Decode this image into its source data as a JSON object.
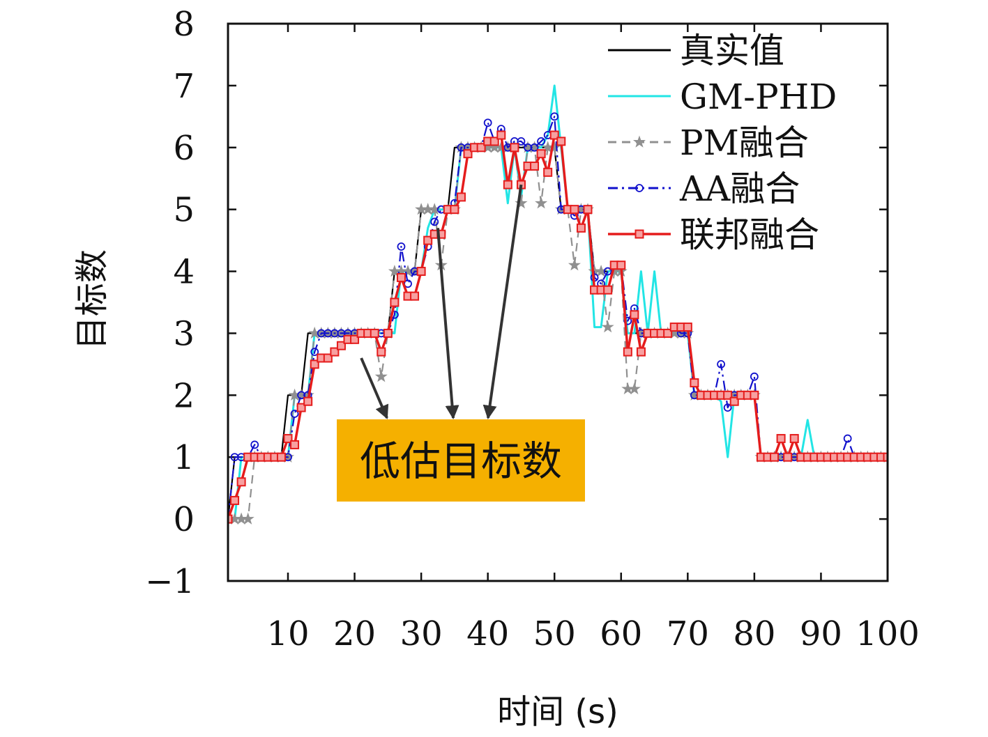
{
  "chart_data": {
    "type": "line",
    "title": "",
    "xlabel": "时间 (s)",
    "ylabel": "目标数",
    "xlim": [
      1,
      100
    ],
    "ylim": [
      -1,
      8
    ],
    "xticks": [
      10,
      20,
      30,
      40,
      50,
      60,
      70,
      80,
      90,
      100
    ],
    "yticks": [
      -1,
      0,
      1,
      2,
      3,
      4,
      5,
      6,
      7,
      8
    ],
    "ytick_labels": [
      "−1",
      "0",
      "1",
      "2",
      "3",
      "4",
      "5",
      "6",
      "7",
      "8"
    ],
    "legend_position": "top-right",
    "annotation": {
      "text": "低估目标数",
      "background": "#f5b000",
      "arrow_targets": [
        [
          21,
          2.6
        ],
        [
          32.5,
          4.7
        ],
        [
          45,
          5.4
        ]
      ]
    },
    "x": [
      1,
      2,
      3,
      4,
      5,
      6,
      7,
      8,
      9,
      10,
      11,
      12,
      13,
      14,
      15,
      16,
      17,
      18,
      19,
      20,
      21,
      22,
      23,
      24,
      25,
      26,
      27,
      28,
      29,
      30,
      31,
      32,
      33,
      34,
      35,
      36,
      37,
      38,
      39,
      40,
      41,
      42,
      43,
      44,
      45,
      46,
      47,
      48,
      49,
      50,
      51,
      52,
      53,
      54,
      55,
      56,
      57,
      58,
      59,
      60,
      61,
      62,
      63,
      64,
      65,
      66,
      67,
      68,
      69,
      70,
      71,
      72,
      73,
      74,
      75,
      76,
      77,
      78,
      79,
      80,
      81,
      82,
      83,
      84,
      85,
      86,
      87,
      88,
      89,
      90,
      91,
      92,
      93,
      94,
      95,
      96,
      97,
      98,
      99,
      100
    ],
    "series": [
      {
        "name": "真实值",
        "color": "#000000",
        "style": "solid",
        "marker": "none",
        "values": [
          0,
          1,
          1,
          1,
          1,
          1,
          1,
          1,
          1,
          2,
          2,
          2,
          3,
          3,
          3,
          3,
          3,
          3,
          3,
          3,
          3,
          3,
          3,
          3,
          3,
          4,
          4,
          4,
          4,
          5,
          5,
          5,
          5,
          5,
          6,
          6,
          6,
          6,
          6,
          6,
          6,
          6,
          6,
          6,
          6,
          6,
          6,
          6,
          6,
          6,
          5,
          5,
          5,
          5,
          5,
          4,
          4,
          4,
          4,
          4,
          3,
          3,
          3,
          3,
          3,
          3,
          3,
          3,
          3,
          3,
          2,
          2,
          2,
          2,
          2,
          2,
          2,
          2,
          2,
          2,
          1,
          1,
          1,
          1,
          1,
          1,
          1,
          1,
          1,
          1,
          1,
          1,
          1,
          1,
          1,
          1,
          1,
          1,
          1,
          1
        ]
      },
      {
        "name": "GM-PHD",
        "color": "#22e5e5",
        "style": "solid",
        "marker": "none",
        "values": [
          0,
          0,
          1,
          1,
          1,
          1,
          1,
          1,
          1,
          1,
          2,
          2,
          2,
          3,
          3,
          3,
          3,
          3,
          3,
          3,
          3,
          3,
          3,
          3,
          3,
          3,
          4,
          4,
          4,
          4,
          4.7,
          5,
          5,
          5,
          5,
          6,
          6,
          6,
          6,
          6,
          6,
          6,
          5.1,
          6,
          5.2,
          6,
          6,
          6,
          6.2,
          7,
          6,
          5,
          5,
          5,
          5,
          3.1,
          3.1,
          4,
          4,
          4,
          3,
          3,
          4,
          3,
          4,
          3,
          3,
          3,
          3,
          3,
          2,
          2,
          2,
          2,
          1.9,
          1,
          2,
          2,
          2,
          2,
          1,
          1,
          1,
          1,
          1,
          1,
          1,
          1.6,
          1,
          1,
          1,
          1,
          1,
          1,
          1,
          1,
          1,
          1,
          1,
          1
        ]
      },
      {
        "name": "PM融合",
        "color": "#909090",
        "style": "dashed",
        "marker": "star",
        "values": [
          0,
          0,
          0,
          0,
          1,
          1,
          1,
          1,
          1,
          1,
          2,
          2,
          2,
          3,
          3,
          3,
          3,
          3,
          3,
          3,
          3,
          3,
          3,
          2.3,
          3,
          4,
          4,
          4,
          4,
          5,
          5,
          5,
          4.1,
          5,
          5,
          6,
          6,
          6,
          6,
          6,
          6,
          6,
          6,
          6,
          5.1,
          6,
          6,
          5.1,
          6,
          6,
          5,
          5,
          4.1,
          5,
          5,
          4,
          4,
          3.1,
          4,
          4,
          2.1,
          2.1,
          3,
          3,
          3,
          3,
          3,
          3,
          3,
          3,
          2,
          2,
          2,
          2,
          2,
          2,
          2,
          2,
          2,
          2,
          1,
          1,
          1,
          1,
          1,
          1,
          1,
          1,
          1,
          1,
          1,
          1,
          1,
          1,
          1,
          1,
          1,
          1,
          1,
          1
        ]
      },
      {
        "name": "AA融合",
        "color": "#1010cc",
        "style": "dashdot",
        "marker": "circle",
        "values": [
          0,
          1,
          1,
          1,
          1.2,
          1,
          1,
          1,
          1,
          1,
          1.7,
          2,
          2,
          2.7,
          3,
          3,
          3,
          3,
          3,
          3,
          3,
          3,
          3,
          3,
          3,
          3.3,
          4.4,
          3.8,
          4,
          4,
          4.4,
          4.8,
          5,
          5,
          5.1,
          6,
          6,
          6,
          6,
          6.4,
          6.1,
          6.3,
          6,
          6.1,
          6.1,
          6,
          6,
          6.1,
          6.2,
          6.5,
          5,
          5,
          4.9,
          5,
          5,
          3.9,
          3.8,
          4,
          4.1,
          4.1,
          3.2,
          3.4,
          3,
          3,
          3,
          3,
          3,
          3.1,
          3,
          3,
          2,
          2,
          2,
          2,
          2.5,
          1.8,
          2,
          2,
          2,
          2.3,
          1,
          1,
          1,
          1,
          1,
          1,
          1,
          1,
          1,
          1,
          1,
          1,
          1,
          1.3,
          1,
          1,
          1,
          1,
          1,
          1
        ]
      },
      {
        "name": "联邦融合",
        "color": "#e51c1c",
        "style": "solid",
        "marker": "square",
        "values": [
          0,
          0.3,
          0.6,
          1,
          1,
          1,
          1,
          1,
          1,
          1.3,
          1.2,
          1.8,
          1.9,
          2.5,
          2.6,
          2.6,
          2.7,
          2.8,
          2.9,
          2.9,
          3,
          3,
          3,
          2.7,
          3,
          3.5,
          3.9,
          3.6,
          3.6,
          4,
          4.5,
          4.6,
          4.6,
          5,
          5,
          5.2,
          5.9,
          6,
          6,
          6.1,
          6.1,
          6.2,
          5.4,
          6,
          5.4,
          5.7,
          5.7,
          5.9,
          5.6,
          6.2,
          6.1,
          5,
          5,
          4.7,
          5,
          3.7,
          3.7,
          3.7,
          4.1,
          4.1,
          2.7,
          3.3,
          2.7,
          3,
          3,
          3,
          3,
          3.1,
          3.1,
          3.1,
          2.2,
          2,
          2,
          2,
          2,
          2,
          1.9,
          2,
          2,
          2,
          1,
          1,
          1,
          1.3,
          1,
          1.3,
          1,
          1,
          1,
          1,
          1,
          1,
          1,
          1,
          1,
          1,
          1,
          1,
          1,
          1
        ]
      }
    ]
  }
}
